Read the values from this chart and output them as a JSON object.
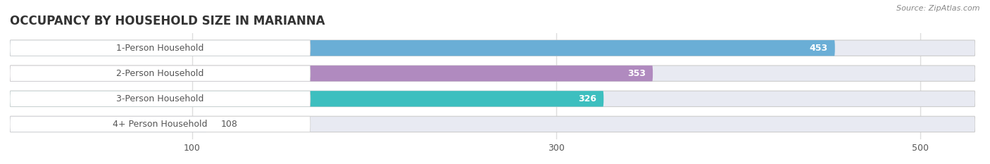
{
  "title": "OCCUPANCY BY HOUSEHOLD SIZE IN MARIANNA",
  "source": "Source: ZipAtlas.com",
  "categories": [
    "1-Person Household",
    "2-Person Household",
    "3-Person Household",
    "4+ Person Household"
  ],
  "values": [
    453,
    353,
    326,
    108
  ],
  "bar_colors": [
    "#6aaed6",
    "#b08abf",
    "#3dbfbf",
    "#b0b8e8"
  ],
  "bar_bg_color": "#e8eaf2",
  "label_bg_color": "#ffffff",
  "xlim_max": 530,
  "xticks": [
    100,
    300,
    500
  ],
  "figsize": [
    14.06,
    2.33
  ],
  "dpi": 100,
  "title_fontsize": 12,
  "label_fontsize": 9,
  "value_fontsize": 9,
  "bar_height": 0.62,
  "background_color": "#ffffff",
  "grid_color": "#dddddd",
  "text_color": "#555555",
  "value_threshold": 130
}
